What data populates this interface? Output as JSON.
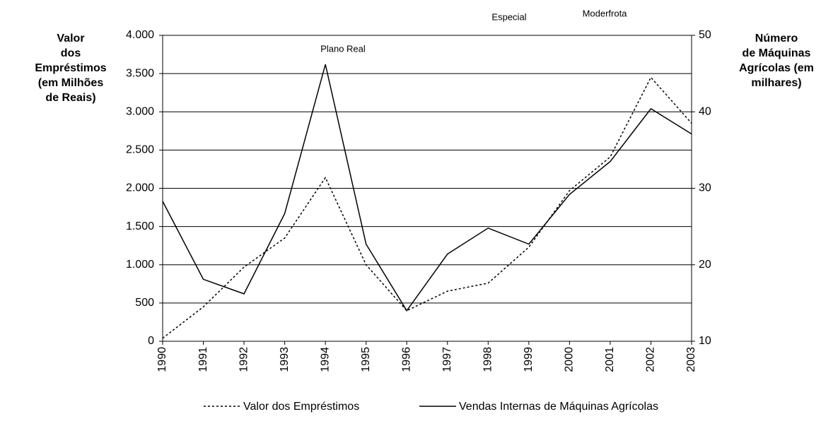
{
  "chart_data": {
    "type": "line",
    "annotations": [
      {
        "text": "Plano Real",
        "x": "1994"
      },
      {
        "text": "Especial",
        "x": "1998"
      },
      {
        "text": "Moderfrota",
        "x": "1999"
      }
    ],
    "y_label": [
      "Valor",
      "dos",
      "Empréstimos",
      "(em Milhões",
      "de Reais)"
    ],
    "y2_label": [
      "Número",
      "de Máquinas",
      "Agrícolas (em",
      "milhares)"
    ],
    "categories": [
      "1990",
      "1991",
      "1992",
      "1993",
      "1994",
      "1995",
      "1996",
      "1997",
      "1998",
      "1999",
      "2000",
      "2001",
      "2002",
      "2003"
    ],
    "series": [
      {
        "name": "Valor dos Empréstimos",
        "color": "#000000",
        "dash": true,
        "axis": "y",
        "values": [
          40,
          450,
          970,
          1350,
          2140,
          1000,
          400,
          655,
          760,
          1230,
          1970,
          2410,
          3450,
          2850
        ]
      },
      {
        "name": "Vendas Internas de Máquinas Agrícolas",
        "color": "#000000",
        "dash": false,
        "axis": "y2",
        "values": [
          28.3,
          18.1,
          16.2,
          26.7,
          46.2,
          22.7,
          14,
          21.4,
          24.8,
          22.7,
          29.2,
          33.5,
          40.4,
          37.1
        ]
      }
    ],
    "ylim": [
      0,
      4000
    ],
    "yticks": [
      0,
      500,
      {
        "value": 1000,
        "label": "1.000"
      },
      {
        "value": 1500,
        "label": "1.500"
      },
      {
        "value": 2000,
        "label": "2.000"
      },
      {
        "value": 2500,
        "label": "2.500"
      },
      {
        "value": 3000,
        "label": "3.000"
      },
      {
        "value": 3500,
        "label": "3.500"
      },
      {
        "value": 4000,
        "label": "4.000"
      }
    ],
    "y2lim": [
      10,
      50
    ],
    "y2ticks": [
      10,
      20,
      30,
      40,
      50
    ],
    "grid": true,
    "legend": "bottom"
  }
}
